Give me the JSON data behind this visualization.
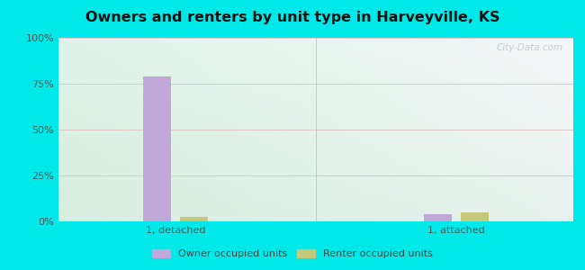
{
  "title": "Owners and renters by unit type in Harveyville, KS",
  "categories": [
    "1, detached",
    "1, attached"
  ],
  "owner_values": [
    79,
    4
  ],
  "renter_values": [
    2.5,
    5
  ],
  "owner_color": "#c2a8d8",
  "renter_color": "#c5c87a",
  "ylim": [
    0,
    100
  ],
  "yticks": [
    0,
    25,
    50,
    75,
    100
  ],
  "ytick_labels": [
    "0%",
    "25%",
    "50%",
    "75%",
    "100%"
  ],
  "outer_bg": "#00e8e8",
  "legend_owner": "Owner occupied units",
  "legend_renter": "Renter occupied units",
  "watermark": "City-Data.com",
  "bar_width": 0.12,
  "title_fontsize": 12
}
